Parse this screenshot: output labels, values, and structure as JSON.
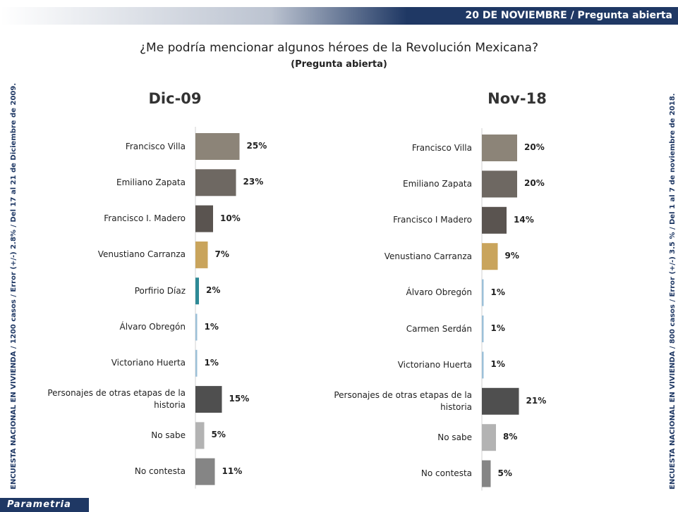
{
  "header": {
    "banner": "20 DE NOVIEMBRE / Pregunta abierta",
    "title": "¿Me podría mencionar algunos héroes de la Revolución Mexicana?",
    "subtitle": "(Pregunta abierta)",
    "left_note": "ENCUESTA NACIONAL EN VIVIENDA / 1200 casos / Error (+/-) 2.8% / Del 17 al 21 de Diciembre de 2009.",
    "right_note": "ENCUESTA NACIONAL EN VIVIENDA / 800 casos / Error (+/-) 3.5 % / Del 1 al 7 de noviembre de 2018.",
    "logo": "Parametria"
  },
  "chart_data": [
    {
      "type": "bar",
      "orientation": "horizontal",
      "title": "Dic-09",
      "categories": [
        "Francisco Villa",
        "Emiliano Zapata",
        "Francisco I. Madero",
        "Venustiano Carranza",
        "Porfirio Díaz",
        "Álvaro Obregón",
        "Victoriano Huerta",
        "Personajes de otras etapas de la historia",
        "No sabe",
        "No contesta"
      ],
      "values": [
        25,
        23,
        10,
        7,
        2,
        1,
        1,
        15,
        5,
        11
      ],
      "value_labels": [
        "25%",
        "23%",
        "10%",
        "7%",
        "2%",
        "1%",
        "1%",
        "15%",
        "5%",
        "11%"
      ],
      "colors": [
        "#8c8478",
        "#6e6862",
        "#5a5450",
        "#c9a45c",
        "#2e8a96",
        "#9cc0d8",
        "#9cc0d8",
        "#4f4f4f",
        "#b3b3b3",
        "#858585"
      ]
    },
    {
      "type": "bar",
      "orientation": "horizontal",
      "title": "Nov-18",
      "categories": [
        "Francisco Villa",
        "Emiliano Zapata",
        "Francisco I Madero",
        "Venustiano Carranza",
        "Álvaro Obregón",
        "Carmen Serdán",
        "Victoriano Huerta",
        "Personajes de otras etapas de la historia",
        "No sabe",
        "No contesta"
      ],
      "values": [
        20,
        20,
        14,
        9,
        1,
        1,
        1,
        21,
        8,
        5
      ],
      "value_labels": [
        "20%",
        "20%",
        "14%",
        "9%",
        "1%",
        "1%",
        "1%",
        "21%",
        "8%",
        "5%"
      ],
      "colors": [
        "#8c8478",
        "#6e6862",
        "#5a5450",
        "#c9a45c",
        "#9cc0d8",
        "#9cc0d8",
        "#9cc0d8",
        "#4f4f4f",
        "#b3b3b3",
        "#858585"
      ]
    }
  ]
}
